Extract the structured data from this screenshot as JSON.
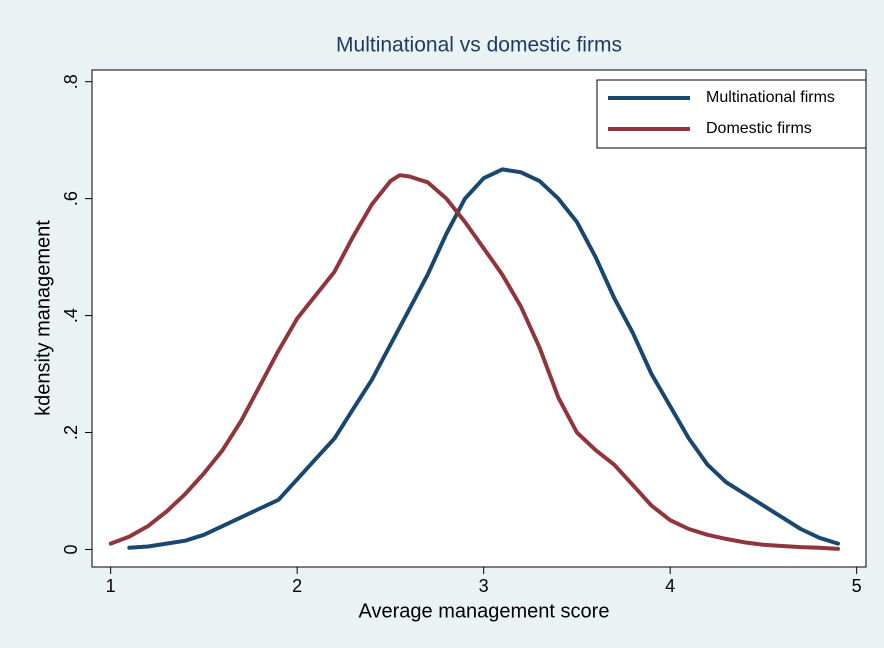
{
  "chart_data": {
    "type": "line",
    "title": "Multinational vs domestic firms",
    "x_label": "Average management score",
    "y_label": "kdensity management",
    "xlim": [
      0.9,
      5.05
    ],
    "ylim": [
      -0.03,
      0.82
    ],
    "xticks": [
      1,
      2,
      3,
      4,
      5
    ],
    "yticks": [
      0,
      {
        "value": 0.2,
        "label": ".2"
      },
      {
        "value": 0.4,
        "label": ".4"
      },
      {
        "value": 0.6,
        "label": ".6"
      },
      {
        "value": 0.8,
        "label": ".8"
      }
    ],
    "legend": "top-right",
    "series": [
      {
        "name": "Multinational firms",
        "color": "#1a476f",
        "x": [
          1.1,
          1.2,
          1.3,
          1.4,
          1.5,
          1.6,
          1.7,
          1.8,
          1.9,
          2.0,
          2.1,
          2.2,
          2.3,
          2.4,
          2.5,
          2.6,
          2.7,
          2.8,
          2.9,
          3.0,
          3.1,
          3.2,
          3.3,
          3.4,
          3.5,
          3.6,
          3.7,
          3.8,
          3.9,
          4.0,
          4.1,
          4.2,
          4.3,
          4.4,
          4.5,
          4.6,
          4.7,
          4.8,
          4.9
        ],
        "values": [
          0.003,
          0.005,
          0.01,
          0.015,
          0.025,
          0.04,
          0.055,
          0.07,
          0.085,
          0.12,
          0.155,
          0.19,
          0.24,
          0.29,
          0.35,
          0.41,
          0.47,
          0.54,
          0.6,
          0.635,
          0.65,
          0.645,
          0.63,
          0.6,
          0.56,
          0.5,
          0.43,
          0.37,
          0.3,
          0.245,
          0.19,
          0.145,
          0.115,
          0.095,
          0.075,
          0.055,
          0.035,
          0.02,
          0.01
        ]
      },
      {
        "name": "Domestic firms",
        "color": "#90353b",
        "x": [
          1.0,
          1.1,
          1.2,
          1.3,
          1.4,
          1.5,
          1.6,
          1.7,
          1.8,
          1.9,
          2.0,
          2.1,
          2.2,
          2.3,
          2.4,
          2.5,
          2.55,
          2.6,
          2.7,
          2.8,
          2.9,
          3.0,
          3.1,
          3.2,
          3.3,
          3.4,
          3.5,
          3.6,
          3.7,
          3.8,
          3.9,
          4.0,
          4.1,
          4.2,
          4.3,
          4.4,
          4.5,
          4.6,
          4.7,
          4.8,
          4.9
        ],
        "values": [
          0.01,
          0.022,
          0.04,
          0.065,
          0.095,
          0.13,
          0.17,
          0.22,
          0.28,
          0.34,
          0.395,
          0.435,
          0.475,
          0.535,
          0.59,
          0.63,
          0.64,
          0.638,
          0.628,
          0.6,
          0.56,
          0.515,
          0.47,
          0.415,
          0.345,
          0.26,
          0.2,
          0.17,
          0.145,
          0.11,
          0.075,
          0.05,
          0.035,
          0.025,
          0.018,
          0.012,
          0.008,
          0.006,
          0.004,
          0.003,
          0.001
        ]
      }
    ]
  }
}
